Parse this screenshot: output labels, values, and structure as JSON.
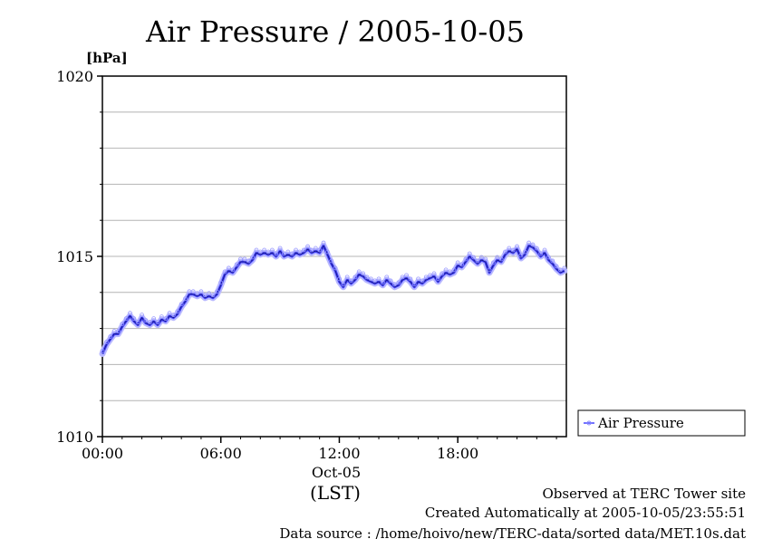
{
  "chart_data": {
    "type": "line",
    "title": "Air Pressure / 2005-10-05",
    "ylabel": "[hPa]",
    "xlabel_date": "Oct-05",
    "xlabel_timezone": "(LST)",
    "xlim": [
      0,
      23.5
    ],
    "ylim": [
      1010,
      1020
    ],
    "x_ticks": [
      0,
      6,
      12,
      18
    ],
    "x_tick_labels": [
      "00:00",
      "06:00",
      "12:00",
      "18:00"
    ],
    "y_ticks": [
      1010,
      1015,
      1020
    ],
    "y_tick_labels": [
      "1010",
      "1015",
      "1020"
    ],
    "y_grid": [
      1011,
      1012,
      1013,
      1014,
      1015,
      1016,
      1017,
      1018,
      1019
    ],
    "grid": true,
    "legend": {
      "placement": "right",
      "entries": [
        "Air Pressure"
      ]
    },
    "series": [
      {
        "name": "Air Pressure",
        "color": "#4444ff",
        "x": [
          0.0,
          0.2,
          0.4,
          0.6,
          0.8,
          1.0,
          1.2,
          1.4,
          1.6,
          1.8,
          2.0,
          2.2,
          2.4,
          2.6,
          2.8,
          3.0,
          3.2,
          3.4,
          3.6,
          3.8,
          4.0,
          4.2,
          4.4,
          4.6,
          4.8,
          5.0,
          5.2,
          5.4,
          5.6,
          5.8,
          6.0,
          6.2,
          6.4,
          6.6,
          6.8,
          7.0,
          7.2,
          7.4,
          7.6,
          7.8,
          8.0,
          8.2,
          8.4,
          8.6,
          8.8,
          9.0,
          9.2,
          9.4,
          9.6,
          9.8,
          10.0,
          10.2,
          10.4,
          10.6,
          10.8,
          11.0,
          11.2,
          11.4,
          11.6,
          11.8,
          12.0,
          12.2,
          12.4,
          12.6,
          12.8,
          13.0,
          13.2,
          13.4,
          13.6,
          13.8,
          14.0,
          14.2,
          14.4,
          14.6,
          14.8,
          15.0,
          15.2,
          15.4,
          15.6,
          15.8,
          16.0,
          16.2,
          16.4,
          16.6,
          16.8,
          17.0,
          17.2,
          17.4,
          17.6,
          17.8,
          18.0,
          18.2,
          18.4,
          18.6,
          18.8,
          19.0,
          19.2,
          19.4,
          19.6,
          19.8,
          20.0,
          20.2,
          20.4,
          20.6,
          20.8,
          21.0,
          21.2,
          21.4,
          21.6,
          21.8,
          22.0,
          22.2,
          22.4,
          22.6,
          22.8,
          23.0,
          23.2,
          23.4
        ],
        "values": [
          1012.3,
          1012.55,
          1012.7,
          1012.85,
          1012.85,
          1013.05,
          1013.2,
          1013.35,
          1013.2,
          1013.1,
          1013.3,
          1013.15,
          1013.1,
          1013.2,
          1013.1,
          1013.25,
          1013.2,
          1013.35,
          1013.3,
          1013.4,
          1013.6,
          1013.75,
          1013.95,
          1013.95,
          1013.9,
          1013.95,
          1013.85,
          1013.9,
          1013.85,
          1013.95,
          1014.2,
          1014.5,
          1014.6,
          1014.55,
          1014.7,
          1014.85,
          1014.85,
          1014.8,
          1014.9,
          1015.1,
          1015.05,
          1015.1,
          1015.05,
          1015.1,
          1015.0,
          1015.15,
          1015.0,
          1015.05,
          1015.0,
          1015.1,
          1015.05,
          1015.1,
          1015.2,
          1015.1,
          1015.15,
          1015.1,
          1015.3,
          1015.05,
          1014.8,
          1014.6,
          1014.3,
          1014.15,
          1014.35,
          1014.25,
          1014.35,
          1014.5,
          1014.45,
          1014.35,
          1014.3,
          1014.25,
          1014.3,
          1014.2,
          1014.35,
          1014.25,
          1014.15,
          1014.2,
          1014.35,
          1014.4,
          1014.3,
          1014.15,
          1014.3,
          1014.25,
          1014.35,
          1014.4,
          1014.45,
          1014.3,
          1014.45,
          1014.55,
          1014.5,
          1014.55,
          1014.75,
          1014.7,
          1014.85,
          1015.0,
          1014.9,
          1014.8,
          1014.9,
          1014.85,
          1014.55,
          1014.75,
          1014.9,
          1014.85,
          1015.05,
          1015.15,
          1015.1,
          1015.2,
          1014.95,
          1015.05,
          1015.3,
          1015.25,
          1015.15,
          1015.0,
          1015.1,
          1014.9,
          1014.8,
          1014.65,
          1014.55,
          1014.6
        ]
      }
    ]
  },
  "footer": {
    "site": "Observed at TERC Tower site",
    "created": "Created Automatically at 2005-10-05/23:55:51",
    "source": "Data source : /home/hoivo/new/TERC-data/sorted  data/MET.10s.dat"
  }
}
